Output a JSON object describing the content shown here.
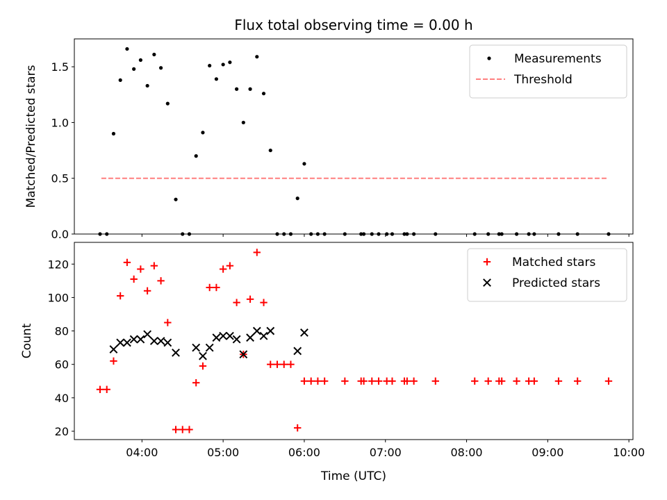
{
  "chart_data": [
    {
      "type": "scatter",
      "title": "Flux total observing time = 0.00 h",
      "xlabel": "",
      "ylabel": "Matched/Predicted stars",
      "xlim": [
        "03:10",
        "10:03"
      ],
      "ylim": [
        0,
        1.75
      ],
      "yticks": [
        0.0,
        0.5,
        1.0,
        1.5
      ],
      "ytick_labels": [
        "0.0",
        "0.5",
        "1.0",
        "1.5"
      ],
      "legend_position": "top-right",
      "series": [
        {
          "name": "Measurements",
          "style": "dot",
          "color": "#000000",
          "points": [
            [
              "03:29",
              0.0
            ],
            [
              "03:34",
              0.0
            ],
            [
              "03:39",
              0.9
            ],
            [
              "03:44",
              1.38
            ],
            [
              "03:49",
              1.66
            ],
            [
              "03:54",
              1.48
            ],
            [
              "03:59",
              1.56
            ],
            [
              "04:04",
              1.33
            ],
            [
              "04:09",
              1.61
            ],
            [
              "04:14",
              1.49
            ],
            [
              "04:19",
              1.17
            ],
            [
              "04:25",
              0.31
            ],
            [
              "04:30",
              0.0
            ],
            [
              "04:35",
              0.0
            ],
            [
              "04:40",
              0.7
            ],
            [
              "04:45",
              0.91
            ],
            [
              "04:50",
              1.51
            ],
            [
              "04:55",
              1.39
            ],
            [
              "05:00",
              1.52
            ],
            [
              "05:05",
              1.54
            ],
            [
              "05:10",
              1.3
            ],
            [
              "05:15",
              1.0
            ],
            [
              "05:20",
              1.3
            ],
            [
              "05:25",
              1.59
            ],
            [
              "05:30",
              1.26
            ],
            [
              "05:35",
              0.75
            ],
            [
              "05:40",
              0.0
            ],
            [
              "05:45",
              0.0
            ],
            [
              "05:50",
              0.0
            ],
            [
              "05:55",
              0.32
            ],
            [
              "06:00",
              0.63
            ],
            [
              "06:05",
              0.0
            ],
            [
              "06:10",
              0.0
            ],
            [
              "06:15",
              0.0
            ],
            [
              "06:30",
              0.0
            ],
            [
              "06:42",
              0.0
            ],
            [
              "06:44",
              0.0
            ],
            [
              "06:50",
              0.0
            ],
            [
              "06:55",
              0.0
            ],
            [
              "07:01",
              0.0
            ],
            [
              "07:05",
              0.0
            ],
            [
              "07:14",
              0.0
            ],
            [
              "07:16",
              0.0
            ],
            [
              "07:21",
              0.0
            ],
            [
              "07:37",
              0.0
            ],
            [
              "08:06",
              0.0
            ],
            [
              "08:16",
              0.0
            ],
            [
              "08:24",
              0.0
            ],
            [
              "08:26",
              0.0
            ],
            [
              "08:37",
              0.0
            ],
            [
              "08:46",
              0.0
            ],
            [
              "08:50",
              0.0
            ],
            [
              "09:08",
              0.0
            ],
            [
              "09:22",
              0.0
            ],
            [
              "09:45",
              0.0
            ]
          ]
        },
        {
          "name": "Threshold",
          "style": "dashed-line",
          "color": "#ff7f7f",
          "points": [
            [
              "03:30",
              0.5
            ],
            [
              "09:45",
              0.5
            ]
          ]
        }
      ]
    },
    {
      "type": "scatter",
      "title": "",
      "xlabel": "Time (UTC)",
      "ylabel": "Count",
      "xlim": [
        "03:10",
        "10:03"
      ],
      "ylim": [
        15,
        133
      ],
      "yticks": [
        20,
        40,
        60,
        80,
        100,
        120
      ],
      "ytick_labels": [
        "20",
        "40",
        "60",
        "80",
        "100",
        "120"
      ],
      "xticks": [
        "04:00",
        "05:00",
        "06:00",
        "07:00",
        "08:00",
        "09:00",
        "10:00"
      ],
      "xtick_labels": [
        "04:00",
        "05:00",
        "06:00",
        "07:00",
        "08:00",
        "09:00",
        "10:00"
      ],
      "legend_position": "top-right",
      "series": [
        {
          "name": "Matched stars",
          "style": "plus",
          "color": "#ff0000",
          "points": [
            [
              "03:29",
              45
            ],
            [
              "03:34",
              45
            ],
            [
              "03:39",
              62
            ],
            [
              "03:44",
              101
            ],
            [
              "03:49",
              121
            ],
            [
              "03:54",
              111
            ],
            [
              "03:59",
              117
            ],
            [
              "04:04",
              104
            ],
            [
              "04:09",
              119
            ],
            [
              "04:14",
              110
            ],
            [
              "04:19",
              85
            ],
            [
              "04:25",
              21
            ],
            [
              "04:30",
              21
            ],
            [
              "04:35",
              21
            ],
            [
              "04:40",
              49
            ],
            [
              "04:45",
              59
            ],
            [
              "04:50",
              106
            ],
            [
              "04:55",
              106
            ],
            [
              "05:00",
              117
            ],
            [
              "05:05",
              119
            ],
            [
              "05:10",
              97
            ],
            [
              "05:15",
              66
            ],
            [
              "05:20",
              99
            ],
            [
              "05:25",
              127
            ],
            [
              "05:30",
              97
            ],
            [
              "05:35",
              60
            ],
            [
              "05:40",
              60
            ],
            [
              "05:45",
              60
            ],
            [
              "05:50",
              60
            ],
            [
              "05:55",
              22
            ],
            [
              "06:00",
              50
            ],
            [
              "06:05",
              50
            ],
            [
              "06:10",
              50
            ],
            [
              "06:15",
              50
            ],
            [
              "06:30",
              50
            ],
            [
              "06:42",
              50
            ],
            [
              "06:44",
              50
            ],
            [
              "06:50",
              50
            ],
            [
              "06:55",
              50
            ],
            [
              "07:01",
              50
            ],
            [
              "07:05",
              50
            ],
            [
              "07:14",
              50
            ],
            [
              "07:16",
              50
            ],
            [
              "07:21",
              50
            ],
            [
              "07:37",
              50
            ],
            [
              "08:06",
              50
            ],
            [
              "08:16",
              50
            ],
            [
              "08:24",
              50
            ],
            [
              "08:26",
              50
            ],
            [
              "08:37",
              50
            ],
            [
              "08:46",
              50
            ],
            [
              "08:50",
              50
            ],
            [
              "09:08",
              50
            ],
            [
              "09:22",
              50
            ],
            [
              "09:45",
              50
            ]
          ]
        },
        {
          "name": "Predicted stars",
          "style": "x",
          "color": "#000000",
          "points": [
            [
              "03:39",
              69
            ],
            [
              "03:44",
              73
            ],
            [
              "03:49",
              73
            ],
            [
              "03:54",
              75
            ],
            [
              "03:59",
              75
            ],
            [
              "04:04",
              78
            ],
            [
              "04:09",
              74
            ],
            [
              "04:14",
              74
            ],
            [
              "04:19",
              73
            ],
            [
              "04:25",
              67
            ],
            [
              "04:40",
              70
            ],
            [
              "04:45",
              65
            ],
            [
              "04:50",
              70
            ],
            [
              "04:55",
              76
            ],
            [
              "05:00",
              77
            ],
            [
              "05:05",
              77
            ],
            [
              "05:10",
              75
            ],
            [
              "05:15",
              66
            ],
            [
              "05:20",
              76
            ],
            [
              "05:25",
              80
            ],
            [
              "05:30",
              77
            ],
            [
              "05:35",
              80
            ],
            [
              "05:55",
              68
            ],
            [
              "06:00",
              79
            ]
          ]
        }
      ]
    }
  ]
}
